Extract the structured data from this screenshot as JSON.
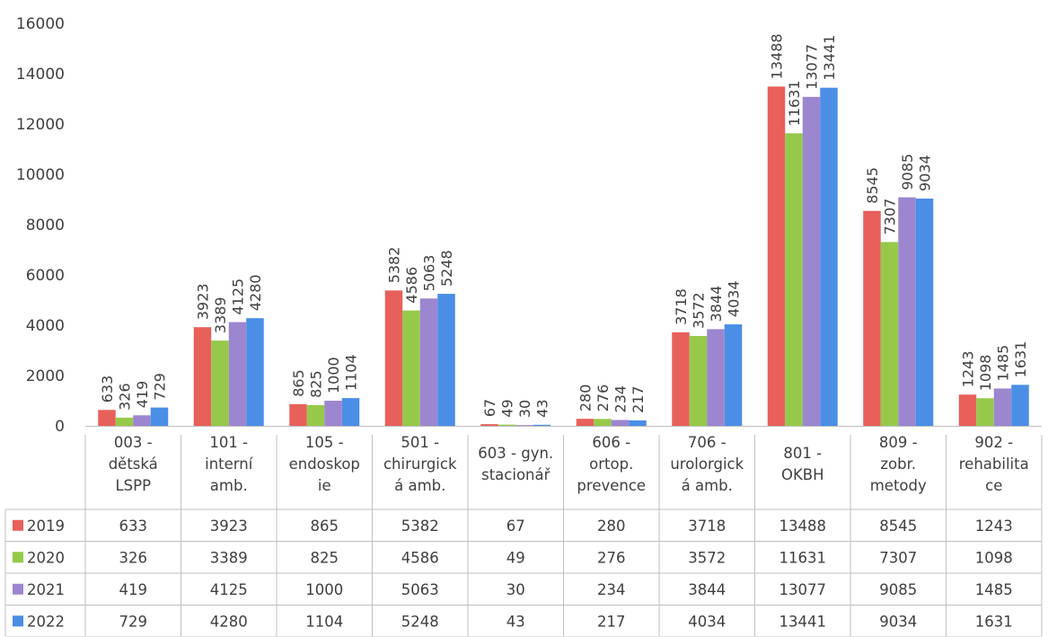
{
  "chart_data": {
    "type": "bar",
    "categories": [
      [
        "003 -",
        "dětská",
        "LSPP"
      ],
      [
        "101 -",
        "interní",
        "amb."
      ],
      [
        "105 -",
        "endoskop",
        "ie"
      ],
      [
        "501 -",
        "chirurgick",
        "á amb."
      ],
      [
        "603 - gyn.",
        "stacionář"
      ],
      [
        "606 -",
        "ortop.",
        "prevence"
      ],
      [
        "706 -",
        "urolorgick",
        "á amb."
      ],
      [
        "801 -",
        "OKBH"
      ],
      [
        "809 -",
        "zobr.",
        "metody"
      ],
      [
        "902 -",
        "rehabilita",
        "ce"
      ]
    ],
    "series": [
      {
        "name": "2019",
        "color": "#e8605a",
        "values": [
          633,
          3923,
          865,
          5382,
          67,
          280,
          3718,
          13488,
          8545,
          1243
        ]
      },
      {
        "name": "2020",
        "color": "#96c94a",
        "values": [
          326,
          3389,
          825,
          4586,
          49,
          276,
          3572,
          11631,
          7307,
          1098
        ]
      },
      {
        "name": "2021",
        "color": "#9c86cf",
        "values": [
          419,
          4125,
          1000,
          5063,
          30,
          234,
          3844,
          13077,
          9085,
          1485
        ]
      },
      {
        "name": "2022",
        "color": "#4a8ee6",
        "values": [
          729,
          4280,
          1104,
          5248,
          43,
          217,
          4034,
          13441,
          9034,
          1631
        ]
      }
    ],
    "y_ticks": [
      "0",
      "2000",
      "4000",
      "6000",
      "8000",
      "10000",
      "12000",
      "14000",
      "16000"
    ],
    "ylim": [
      0,
      16000
    ],
    "data_labels": true,
    "data_table": true,
    "legend": "data-table-left"
  }
}
